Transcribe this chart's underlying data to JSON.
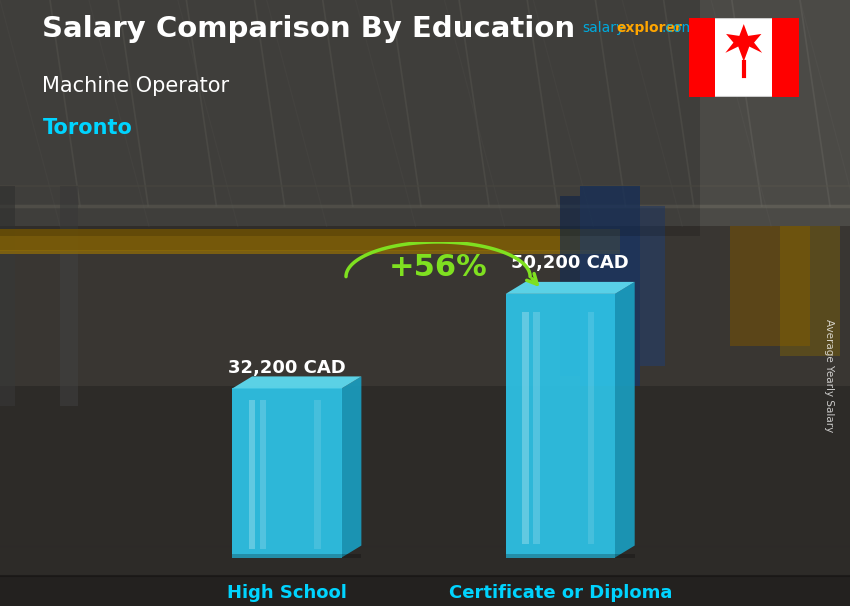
{
  "title_main": "Salary Comparison By Education",
  "subtitle_job": "Machine Operator",
  "subtitle_city": "Toronto",
  "categories": [
    "High School",
    "Certificate or Diploma"
  ],
  "values": [
    32200,
    50200
  ],
  "value_labels": [
    "32,200 CAD",
    "50,200 CAD"
  ],
  "pct_change": "+56%",
  "bar_face_color": "#2EC4E8",
  "bar_top_color": "#5DDAF0",
  "bar_side_color": "#1A9DBF",
  "bar_dark_edge": "#1588A8",
  "xlabel_color": "#00D4FF",
  "title_color": "#FFFFFF",
  "subtitle_job_color": "#FFFFFF",
  "city_color": "#00D4FF",
  "value_label_color": "#FFFFFF",
  "pct_color": "#7FE020",
  "arrow_color": "#7FE020",
  "side_label": "Average Yearly Salary",
  "salary_text_color": "#00AADD",
  "explorer_text_color": "#FFA500",
  "ylim": [
    0,
    60000
  ],
  "fig_width": 8.5,
  "fig_height": 6.06,
  "dpi": 100,
  "bg_top": "#6a6a6a",
  "bg_mid": "#4a4a4a",
  "bg_bot": "#3a3835",
  "crane_color": "#C8960A",
  "beam_color": "#888888"
}
